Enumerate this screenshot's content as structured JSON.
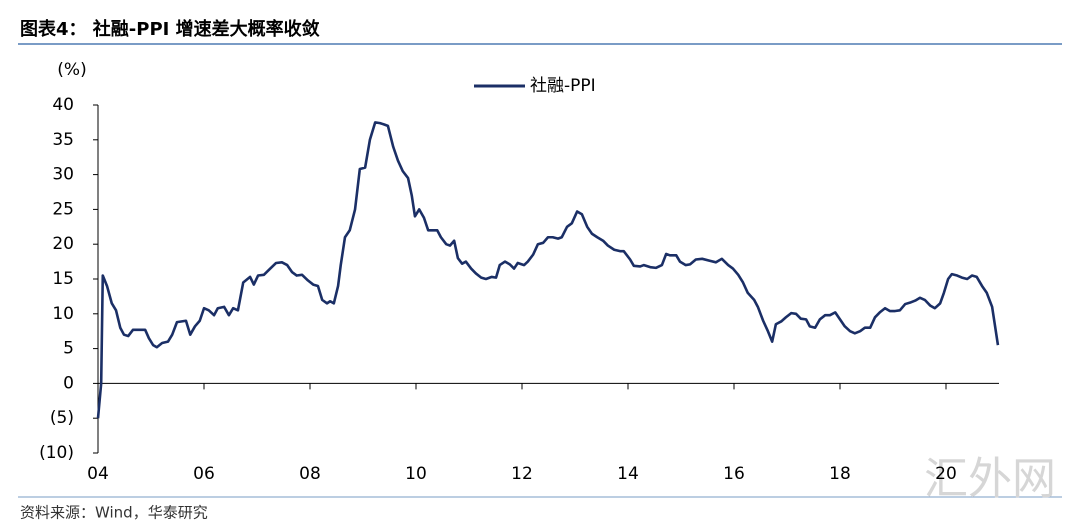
{
  "chart_data": {
    "type": "line",
    "title": "图表4： 社融-PPI 增速差大概率收敛",
    "y_label": "(%)",
    "source": "资料来源：Wind，华泰研究",
    "watermark": "汇外网",
    "legend": "upper center",
    "xlim": [
      2004,
      2021
    ],
    "xticks": [
      {
        "value": 2004,
        "label": "04"
      },
      {
        "value": 2006,
        "label": "06"
      },
      {
        "value": 2008,
        "label": "08"
      },
      {
        "value": 2010,
        "label": "10"
      },
      {
        "value": 2012,
        "label": "12"
      },
      {
        "value": 2014,
        "label": "14"
      },
      {
        "value": 2016,
        "label": "16"
      },
      {
        "value": 2018,
        "label": "18"
      },
      {
        "value": 2020,
        "label": "20"
      }
    ],
    "ylim": [
      -10,
      40
    ],
    "yticks": [
      {
        "value": -10,
        "label": "(10)"
      },
      {
        "value": -5,
        "label": "(5)"
      },
      0,
      5,
      10,
      15,
      20,
      25,
      30,
      35,
      40
    ],
    "x": [
      2004.0,
      2004.06,
      2004.09,
      2004.17,
      2004.26,
      2004.34,
      2004.42,
      2004.49,
      2004.57,
      2004.66,
      2004.89,
      2004.96,
      2005.04,
      2005.11,
      2005.21,
      2005.32,
      2005.4,
      2005.49,
      2005.66,
      2005.74,
      2005.83,
      2005.92,
      2006.0,
      2006.09,
      2006.19,
      2006.26,
      2006.38,
      2006.47,
      2006.55,
      2006.64,
      2006.74,
      2006.87,
      2006.94,
      2007.02,
      2007.13,
      2007.25,
      2007.36,
      2007.47,
      2007.57,
      2007.66,
      2007.75,
      2007.85,
      2007.96,
      2008.06,
      2008.15,
      2008.23,
      2008.32,
      2008.38,
      2008.45,
      2008.53,
      2008.58,
      2008.66,
      2008.75,
      2008.85,
      2008.94,
      2009.04,
      2009.13,
      2009.23,
      2009.32,
      2009.4,
      2009.47,
      2009.57,
      2009.66,
      2009.75,
      2009.85,
      2009.92,
      2009.98,
      2010.06,
      2010.15,
      2010.23,
      2010.32,
      2010.4,
      2010.47,
      2010.57,
      2010.64,
      2010.72,
      2010.79,
      2010.87,
      2010.94,
      2011.04,
      2011.13,
      2011.23,
      2011.32,
      2011.43,
      2011.51,
      2011.58,
      2011.68,
      2011.77,
      2011.85,
      2011.92,
      2012.04,
      2012.11,
      2012.21,
      2012.3,
      2012.4,
      2012.49,
      2012.58,
      2012.68,
      2012.75,
      2012.85,
      2012.94,
      2013.04,
      2013.13,
      2013.23,
      2013.32,
      2013.42,
      2013.53,
      2013.62,
      2013.74,
      2013.85,
      2013.92,
      2014.04,
      2014.11,
      2014.23,
      2014.3,
      2014.42,
      2014.53,
      2014.64,
      2014.72,
      2014.79,
      2014.91,
      2014.98,
      2015.09,
      2015.17,
      2015.28,
      2015.4,
      2015.55,
      2015.66,
      2015.77,
      2015.89,
      2015.98,
      2016.08,
      2016.17,
      2016.26,
      2016.38,
      2016.45,
      2016.55,
      2016.64,
      2016.72,
      2016.79,
      2016.89,
      2016.98,
      2017.08,
      2017.17,
      2017.26,
      2017.36,
      2017.43,
      2017.53,
      2017.62,
      2017.72,
      2017.81,
      2017.91,
      2018.0,
      2018.09,
      2018.19,
      2018.28,
      2018.38,
      2018.47,
      2018.57,
      2018.66,
      2018.75,
      2018.85,
      2018.94,
      2019.04,
      2019.13,
      2019.23,
      2019.32,
      2019.42,
      2019.51,
      2019.6,
      2019.7,
      2019.79,
      2019.89,
      2019.96,
      2020.04,
      2020.11,
      2020.21,
      2020.3,
      2020.4,
      2020.49,
      2020.58,
      2020.68,
      2020.77,
      2020.87,
      2020.92,
      2020.98
    ],
    "series": [
      {
        "name": "社融-PPI",
        "color": "#1b2f66",
        "values": [
          -5,
          0,
          15.5,
          14,
          11.5,
          10.5,
          8,
          7,
          6.8,
          7.7,
          7.7,
          6.5,
          5.5,
          5.2,
          5.8,
          6,
          7,
          8.8,
          9,
          7,
          8.2,
          9,
          10.8,
          10.5,
          9.8,
          10.8,
          11,
          9.8,
          10.8,
          10.5,
          14.5,
          15.3,
          14.2,
          15.5,
          15.6,
          16.5,
          17.3,
          17.4,
          17,
          16,
          15.5,
          15.6,
          14.8,
          14.2,
          14,
          12,
          11.5,
          11.8,
          11.5,
          14,
          17,
          21,
          22,
          25,
          30.8,
          31,
          35,
          37.5,
          37.4,
          37.2,
          37,
          34,
          32,
          30.5,
          29.5,
          27,
          24,
          25,
          23.8,
          22,
          22,
          22,
          21,
          20,
          19.8,
          20.5,
          18,
          17.2,
          17.5,
          16.5,
          15.8,
          15.2,
          15,
          15.3,
          15.2,
          17,
          17.5,
          17.1,
          16.5,
          17.3,
          17,
          17.5,
          18.5,
          20,
          20.2,
          21,
          21,
          20.8,
          21,
          22.5,
          23,
          24.7,
          24.3,
          22.5,
          21.5,
          21,
          20.5,
          19.8,
          19.2,
          19,
          19,
          17.8,
          16.9,
          16.8,
          17,
          16.7,
          16.6,
          17,
          18.6,
          18.4,
          18.4,
          17.5,
          17,
          17.1,
          17.8,
          17.9,
          17.6,
          17.4,
          17.9,
          17,
          16.5,
          15.6,
          14.5,
          13,
          12,
          11,
          9,
          7.5,
          6,
          8.5,
          8.9,
          9.5,
          10.1,
          10,
          9.3,
          9.2,
          8.2,
          8,
          9.2,
          9.8,
          9.8,
          10.2,
          9.2,
          8.2,
          7.5,
          7.2,
          7.5,
          8,
          8,
          9.5,
          10.2,
          10.8,
          10.4,
          10.4,
          10.5,
          11.4,
          11.6,
          11.9,
          12.3,
          12,
          11.2,
          10.8,
          11.5,
          13,
          15,
          15.7,
          15.5,
          15.2,
          15,
          15.5,
          15.3,
          14,
          13,
          11,
          8.5,
          5.5
        ]
      }
    ]
  }
}
